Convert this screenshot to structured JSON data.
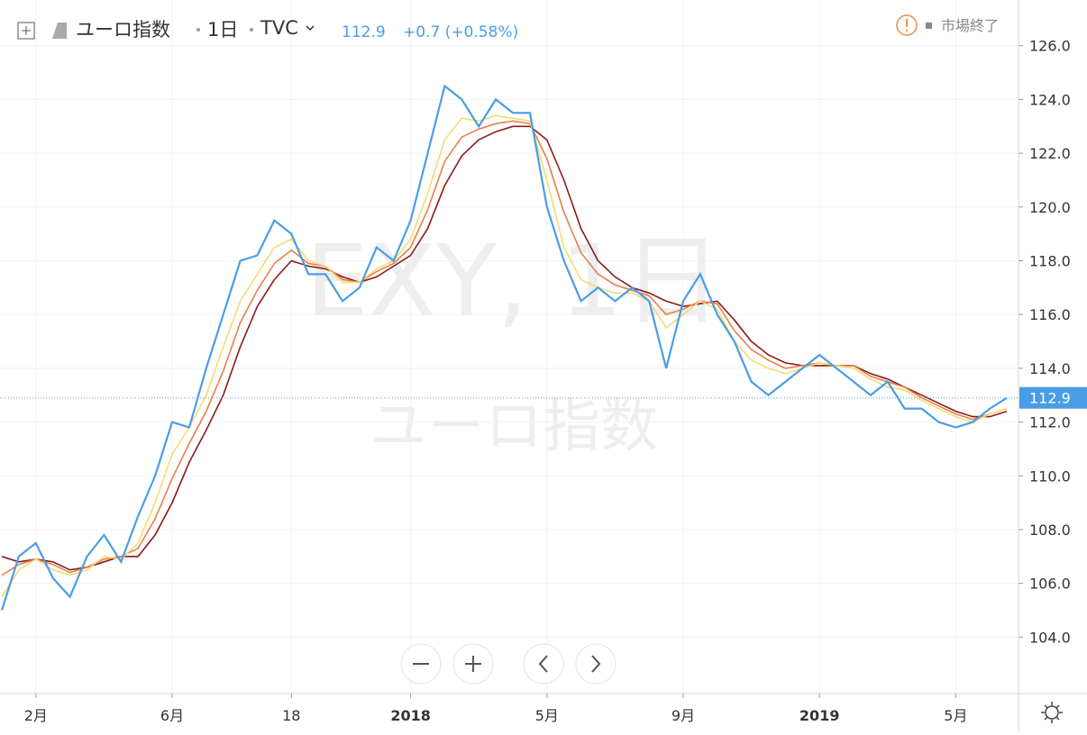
{
  "header": {
    "symbol": "ユーロ指数",
    "interval": "1日",
    "exchange": "TVC",
    "last": "112.9",
    "change": "+0.7 (+0.58%)",
    "status": "市場終了"
  },
  "watermark": {
    "line1": "EXY, 1日",
    "line2": "ユーロ指数"
  },
  "chart_data": {
    "type": "line",
    "categories": [
      null,
      null,
      "2月",
      null,
      null,
      null,
      null,
      null,
      null,
      null,
      "6月",
      null,
      null,
      null,
      null,
      null,
      null,
      "18",
      null,
      null,
      null,
      null,
      null,
      null,
      "2018",
      null,
      null,
      null,
      null,
      null,
      null,
      null,
      "5月",
      null,
      null,
      null,
      null,
      null,
      null,
      null,
      "9月",
      null,
      null,
      null,
      null,
      null,
      null,
      null,
      "2019",
      null,
      null,
      null,
      null,
      null,
      null,
      null,
      "5月",
      null,
      null,
      null
    ],
    "series": [
      {
        "color": "#8b1a1a",
        "values": [
          107,
          106.8,
          106.9,
          106.8,
          106.5,
          106.6,
          106.8,
          107,
          107,
          107.8,
          109,
          110.5,
          111.7,
          113,
          114.8,
          116.3,
          117.3,
          118,
          117.8,
          117.7,
          117.4,
          117.2,
          117.4,
          117.8,
          118.2,
          119.2,
          120.8,
          121.9,
          122.5,
          122.8,
          123,
          123,
          122.5,
          121,
          119.2,
          118,
          117.4,
          117,
          116.8,
          116.5,
          116.3,
          116.4,
          116.5,
          115.8,
          115,
          114.5,
          114.2,
          114.1,
          114.1,
          114.1,
          114.1,
          113.8,
          113.6,
          113.3,
          113,
          112.7,
          112.4,
          112.2,
          112.2,
          112.4
        ]
      },
      {
        "color": "#e8804a",
        "values": [
          106.3,
          106.7,
          106.9,
          106.7,
          106.4,
          106.6,
          106.9,
          107,
          107.3,
          108.4,
          109.9,
          111.2,
          112.4,
          113.9,
          115.7,
          116.9,
          117.9,
          118.4,
          117.9,
          117.8,
          117.3,
          117.2,
          117.6,
          117.9,
          118.5,
          119.9,
          121.7,
          122.6,
          122.9,
          123.1,
          123.2,
          123.1,
          121.8,
          119.8,
          118.3,
          117.5,
          117.1,
          116.9,
          116.7,
          116,
          116.2,
          116.5,
          116.4,
          115.4,
          114.7,
          114.3,
          114,
          114.1,
          114.2,
          114.1,
          114.1,
          113.7,
          113.5,
          113.3,
          112.9,
          112.6,
          112.3,
          112.1,
          112.3,
          112.5
        ]
      },
      {
        "color": "#f3dc74",
        "values": [
          105.5,
          106.5,
          106.9,
          106.5,
          106.3,
          106.5,
          107,
          106.9,
          107.5,
          109,
          110.8,
          111.8,
          113,
          114.8,
          116.5,
          117.5,
          118.5,
          118.8,
          118,
          117.8,
          117.2,
          117.2,
          117.7,
          118,
          118.8,
          120.5,
          122.5,
          123.3,
          123.2,
          123.4,
          123.3,
          123.2,
          121,
          118.5,
          117.3,
          117,
          116.8,
          116.8,
          116.5,
          115.5,
          116,
          116.5,
          116.2,
          115,
          114.3,
          114,
          113.8,
          114,
          114.2,
          114.1,
          114,
          113.6,
          113.3,
          113.2,
          112.8,
          112.5,
          112.2,
          112,
          112.3,
          112.5
        ]
      },
      {
        "color": "#4a9de5",
        "values": [
          105,
          107,
          107.5,
          106.2,
          105.5,
          107,
          107.8,
          106.8,
          108.5,
          110,
          112,
          111.8,
          114,
          116,
          118,
          118.2,
          119.5,
          119,
          117.5,
          117.5,
          116.5,
          117,
          118.5,
          118,
          119.5,
          122,
          124.5,
          124,
          123,
          124,
          123.5,
          123.5,
          120,
          118,
          116.5,
          117,
          116.5,
          117,
          116.5,
          114,
          116.5,
          117.5,
          116,
          115,
          113.5,
          113,
          113.5,
          114,
          114.5,
          114,
          113.5,
          113,
          113.5,
          112.5,
          112.5,
          112,
          111.8,
          112,
          112.5,
          112.9
        ]
      }
    ],
    "ylim": [
      101.9,
      127.7
    ],
    "yticks": [
      {
        "value": 104,
        "label": "104.0"
      },
      {
        "value": 106,
        "label": "106.0"
      },
      {
        "value": 108,
        "label": "108.0"
      },
      {
        "value": 110,
        "label": "110.0"
      },
      {
        "value": 112,
        "label": "112.0"
      },
      {
        "value": 114,
        "label": "114.0"
      },
      {
        "value": 116,
        "label": "116.0"
      },
      {
        "value": 118,
        "label": "118.0"
      },
      {
        "value": 120,
        "label": "120.0"
      },
      {
        "value": 122,
        "label": "122.0"
      },
      {
        "value": 124,
        "label": "124.0"
      },
      {
        "value": 126,
        "label": "126.0"
      }
    ],
    "grid": true
  }
}
